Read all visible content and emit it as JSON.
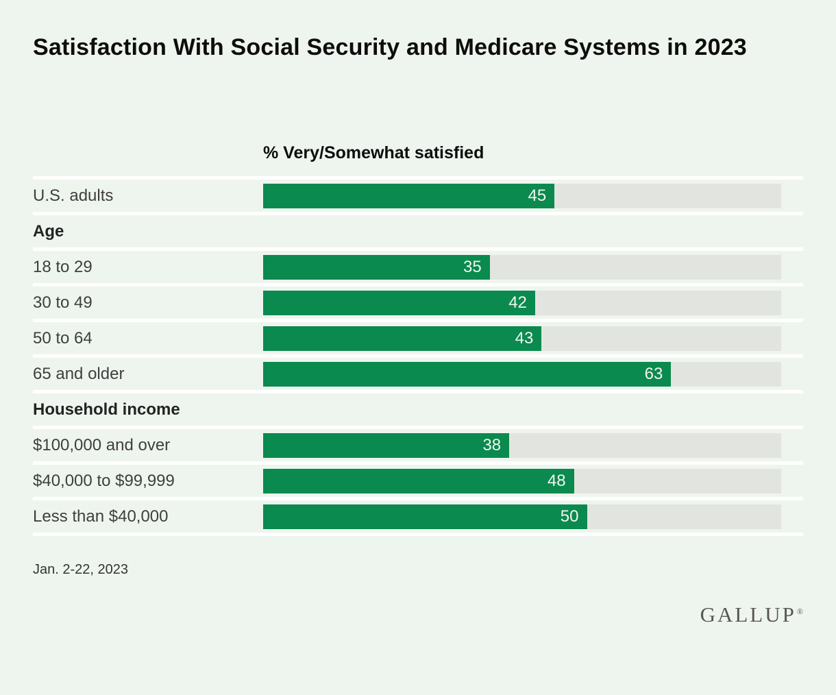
{
  "page": {
    "background_color": "#eef5ee",
    "title": "Satisfaction With Social Security and Medicare Systems in 2023"
  },
  "chart_data": {
    "type": "bar",
    "orientation": "horizontal",
    "title": "Satisfaction With Social Security and Medicare Systems in 2023",
    "subtitle": "% Very/Somewhat satisfied",
    "xlim": [
      0,
      80
    ],
    "grid": false,
    "bar_color": "#0a8a4e",
    "track_color": "#e2e5df",
    "value_label_color": "#f2f5f1",
    "categories": [
      "U.S. adults",
      "18 to 29",
      "30 to 49",
      "50 to 64",
      "65 and older",
      "$100,000 and over",
      "$40,000 to $99,999",
      "Less than $40,000"
    ],
    "values": [
      45,
      35,
      42,
      43,
      63,
      38,
      48,
      50
    ],
    "rows": [
      {
        "kind": "data",
        "label": "U.S. adults",
        "value": 45
      },
      {
        "kind": "section",
        "label": "Age"
      },
      {
        "kind": "data",
        "label": "18 to 29",
        "value": 35
      },
      {
        "kind": "data",
        "label": "30 to 49",
        "value": 42
      },
      {
        "kind": "data",
        "label": "50 to 64",
        "value": 43
      },
      {
        "kind": "data",
        "label": "65 and older",
        "value": 63
      },
      {
        "kind": "section",
        "label": "Household income"
      },
      {
        "kind": "data",
        "label": "$100,000 and over",
        "value": 38
      },
      {
        "kind": "data",
        "label": "$40,000 to $99,999",
        "value": 48
      },
      {
        "kind": "data",
        "label": "Less than $40,000",
        "value": 50
      }
    ]
  },
  "footer": {
    "date": "Jan. 2-22, 2023",
    "brand": "GALLUP",
    "brand_mark": "®"
  }
}
